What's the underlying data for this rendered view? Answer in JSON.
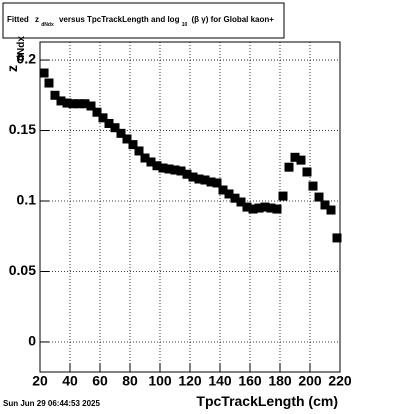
{
  "chart_data": {
    "type": "scatter",
    "title": [
      "Fitted",
      "z",
      "dNdx",
      "versus TpcTrackLength and log",
      "10",
      "(β γ) for Global kaon+"
    ],
    "x_label": "TpcTrackLength (cm)",
    "y_label": [
      "z",
      "dNdx"
    ],
    "timestamp": "Sun Jun 29 06:44:53 2025",
    "color": "#000000",
    "grid": true,
    "xlim": [
      20,
      220
    ],
    "xticks": [
      20,
      40,
      60,
      80,
      100,
      120,
      140,
      160,
      180,
      200,
      220
    ],
    "ylim": [
      -0.0213,
      0.2128
    ],
    "yticks": [
      0,
      0.05,
      0.1,
      0.15,
      0.2
    ],
    "x": [
      22.7,
      26,
      30,
      34,
      38,
      42,
      46,
      50,
      54,
      58,
      62,
      66,
      70,
      74,
      78,
      82,
      86,
      90,
      94,
      98,
      102,
      106,
      110,
      114,
      118,
      122,
      126,
      130,
      134,
      138,
      142,
      146,
      150,
      154,
      158,
      162,
      166,
      170,
      174,
      178,
      182,
      186,
      190,
      194,
      198,
      202,
      206,
      210,
      214,
      218
    ],
    "values": [
      0.1908,
      0.1837,
      0.175,
      0.171,
      0.1695,
      0.169,
      0.169,
      0.169,
      0.1674,
      0.163,
      0.159,
      0.155,
      0.152,
      0.148,
      0.144,
      0.14,
      0.1355,
      0.1305,
      0.1277,
      0.125,
      0.1234,
      0.1227,
      0.122,
      0.1213,
      0.119,
      0.117,
      0.1156,
      0.1149,
      0.1135,
      0.1128,
      0.1078,
      0.105,
      0.102,
      0.0993,
      0.0957,
      0.0943,
      0.095,
      0.0957,
      0.095,
      0.0943,
      0.1035,
      0.124,
      0.131,
      0.129,
      0.1206,
      0.1106,
      0.1028,
      0.0972,
      0.0936,
      0.0738
    ]
  }
}
